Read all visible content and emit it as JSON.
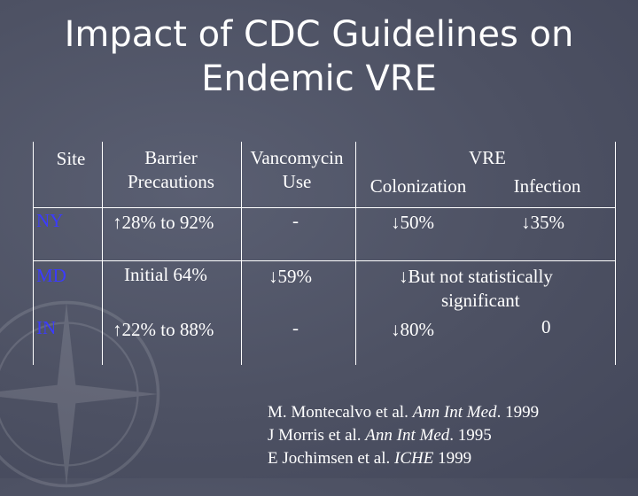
{
  "title": {
    "line1": "Impact of CDC Guidelines on",
    "line2": "Endemic VRE"
  },
  "table": {
    "headers": {
      "site": "Site",
      "barrier_line1": "Barrier",
      "barrier_line2": "Precautions",
      "vanco_line1": "Vancomycin",
      "vanco_line2": "Use",
      "vre": "VRE",
      "colonization": "Colonization",
      "infection": "Infection"
    },
    "rows": [
      {
        "site": "NY",
        "barrier": "28% to 92%",
        "barrier_arrow": "up",
        "vancomycin": "-",
        "colonization": "50%",
        "colonization_arrow": "down",
        "infection": "35%",
        "infection_arrow": "down"
      },
      {
        "site": "MD",
        "barrier": "Initial 64%",
        "vancomycin": "59%",
        "vancomycin_arrow": "down",
        "vre_note_line1": "But not statistically",
        "vre_note_line2": "significant",
        "vre_note_arrow": "down"
      },
      {
        "site": "IN",
        "barrier": "22% to 88%",
        "barrier_arrow": "up",
        "vancomycin": "-",
        "colonization": "80%",
        "colonization_arrow": "down",
        "infection": "0"
      }
    ],
    "arrows": {
      "up": "↑",
      "down": "↓"
    }
  },
  "references": [
    {
      "authors": "M. Montecalvo et al. ",
      "journal": "Ann Int Med",
      "year": ". 1999"
    },
    {
      "authors": "J Morris et al. ",
      "journal": "Ann Int Med",
      "year": ". 1995"
    },
    {
      "authors": "E Jochimsen et al. ",
      "journal": "ICHE",
      "year": " 1999"
    }
  ]
}
